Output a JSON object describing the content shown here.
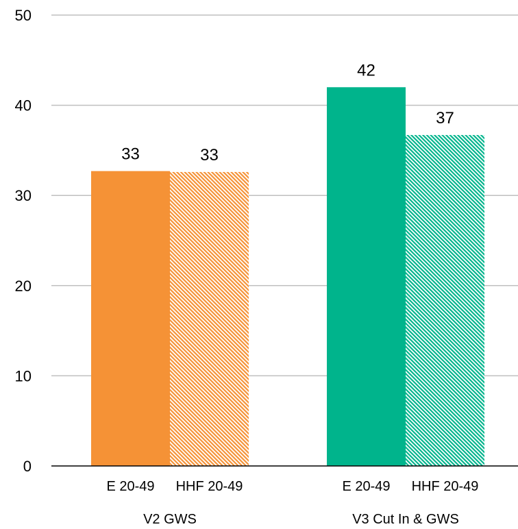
{
  "chart_data": {
    "type": "bar",
    "title": "",
    "xlabel": "",
    "ylabel": "",
    "ylim": [
      0,
      50
    ],
    "yticks": [
      0,
      10,
      20,
      30,
      40,
      50
    ],
    "grid": true,
    "groups": [
      {
        "name": "V2 GWS",
        "color": "#F59236",
        "bars": [
          {
            "label": "E 20-49",
            "value": 32.7,
            "data_label": "33",
            "style": "solid"
          },
          {
            "label": "HHF 20-49",
            "value": 32.6,
            "data_label": "33",
            "style": "hatched"
          }
        ]
      },
      {
        "name": "V3 Cut In & GWS",
        "color": "#00B48C",
        "bars": [
          {
            "label": "E 20-49",
            "value": 42.0,
            "data_label": "42",
            "style": "solid"
          },
          {
            "label": "HHF 20-49",
            "value": 36.7,
            "data_label": "37",
            "style": "hatched"
          }
        ]
      }
    ]
  }
}
